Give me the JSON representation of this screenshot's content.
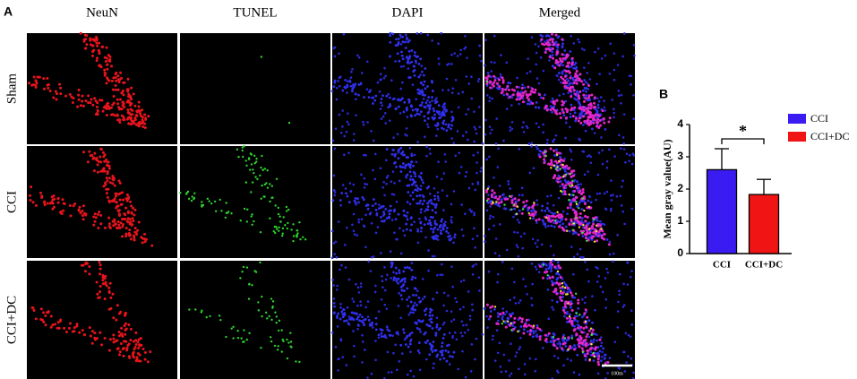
{
  "panel_a": {
    "label": "A",
    "columns": [
      "NeuN",
      "TUNEL",
      "DAPI",
      "Merged"
    ],
    "rows": [
      "Sham",
      "CCI",
      "CCI+DC"
    ],
    "scale_bar": "100m"
  },
  "chart_data": {
    "type": "bar",
    "label": "B",
    "y_label": "Mean gray value(AU)",
    "categories": [
      "CCI",
      "CCI+DC"
    ],
    "values": [
      2.6,
      1.83
    ],
    "errors": [
      0.65,
      0.47
    ],
    "colors": [
      "#3a1cf2",
      "#f01414"
    ],
    "ylim": [
      0,
      4
    ],
    "yticks": [
      0,
      1,
      2,
      3,
      4
    ],
    "annotation": "*",
    "legend": "upper right"
  }
}
